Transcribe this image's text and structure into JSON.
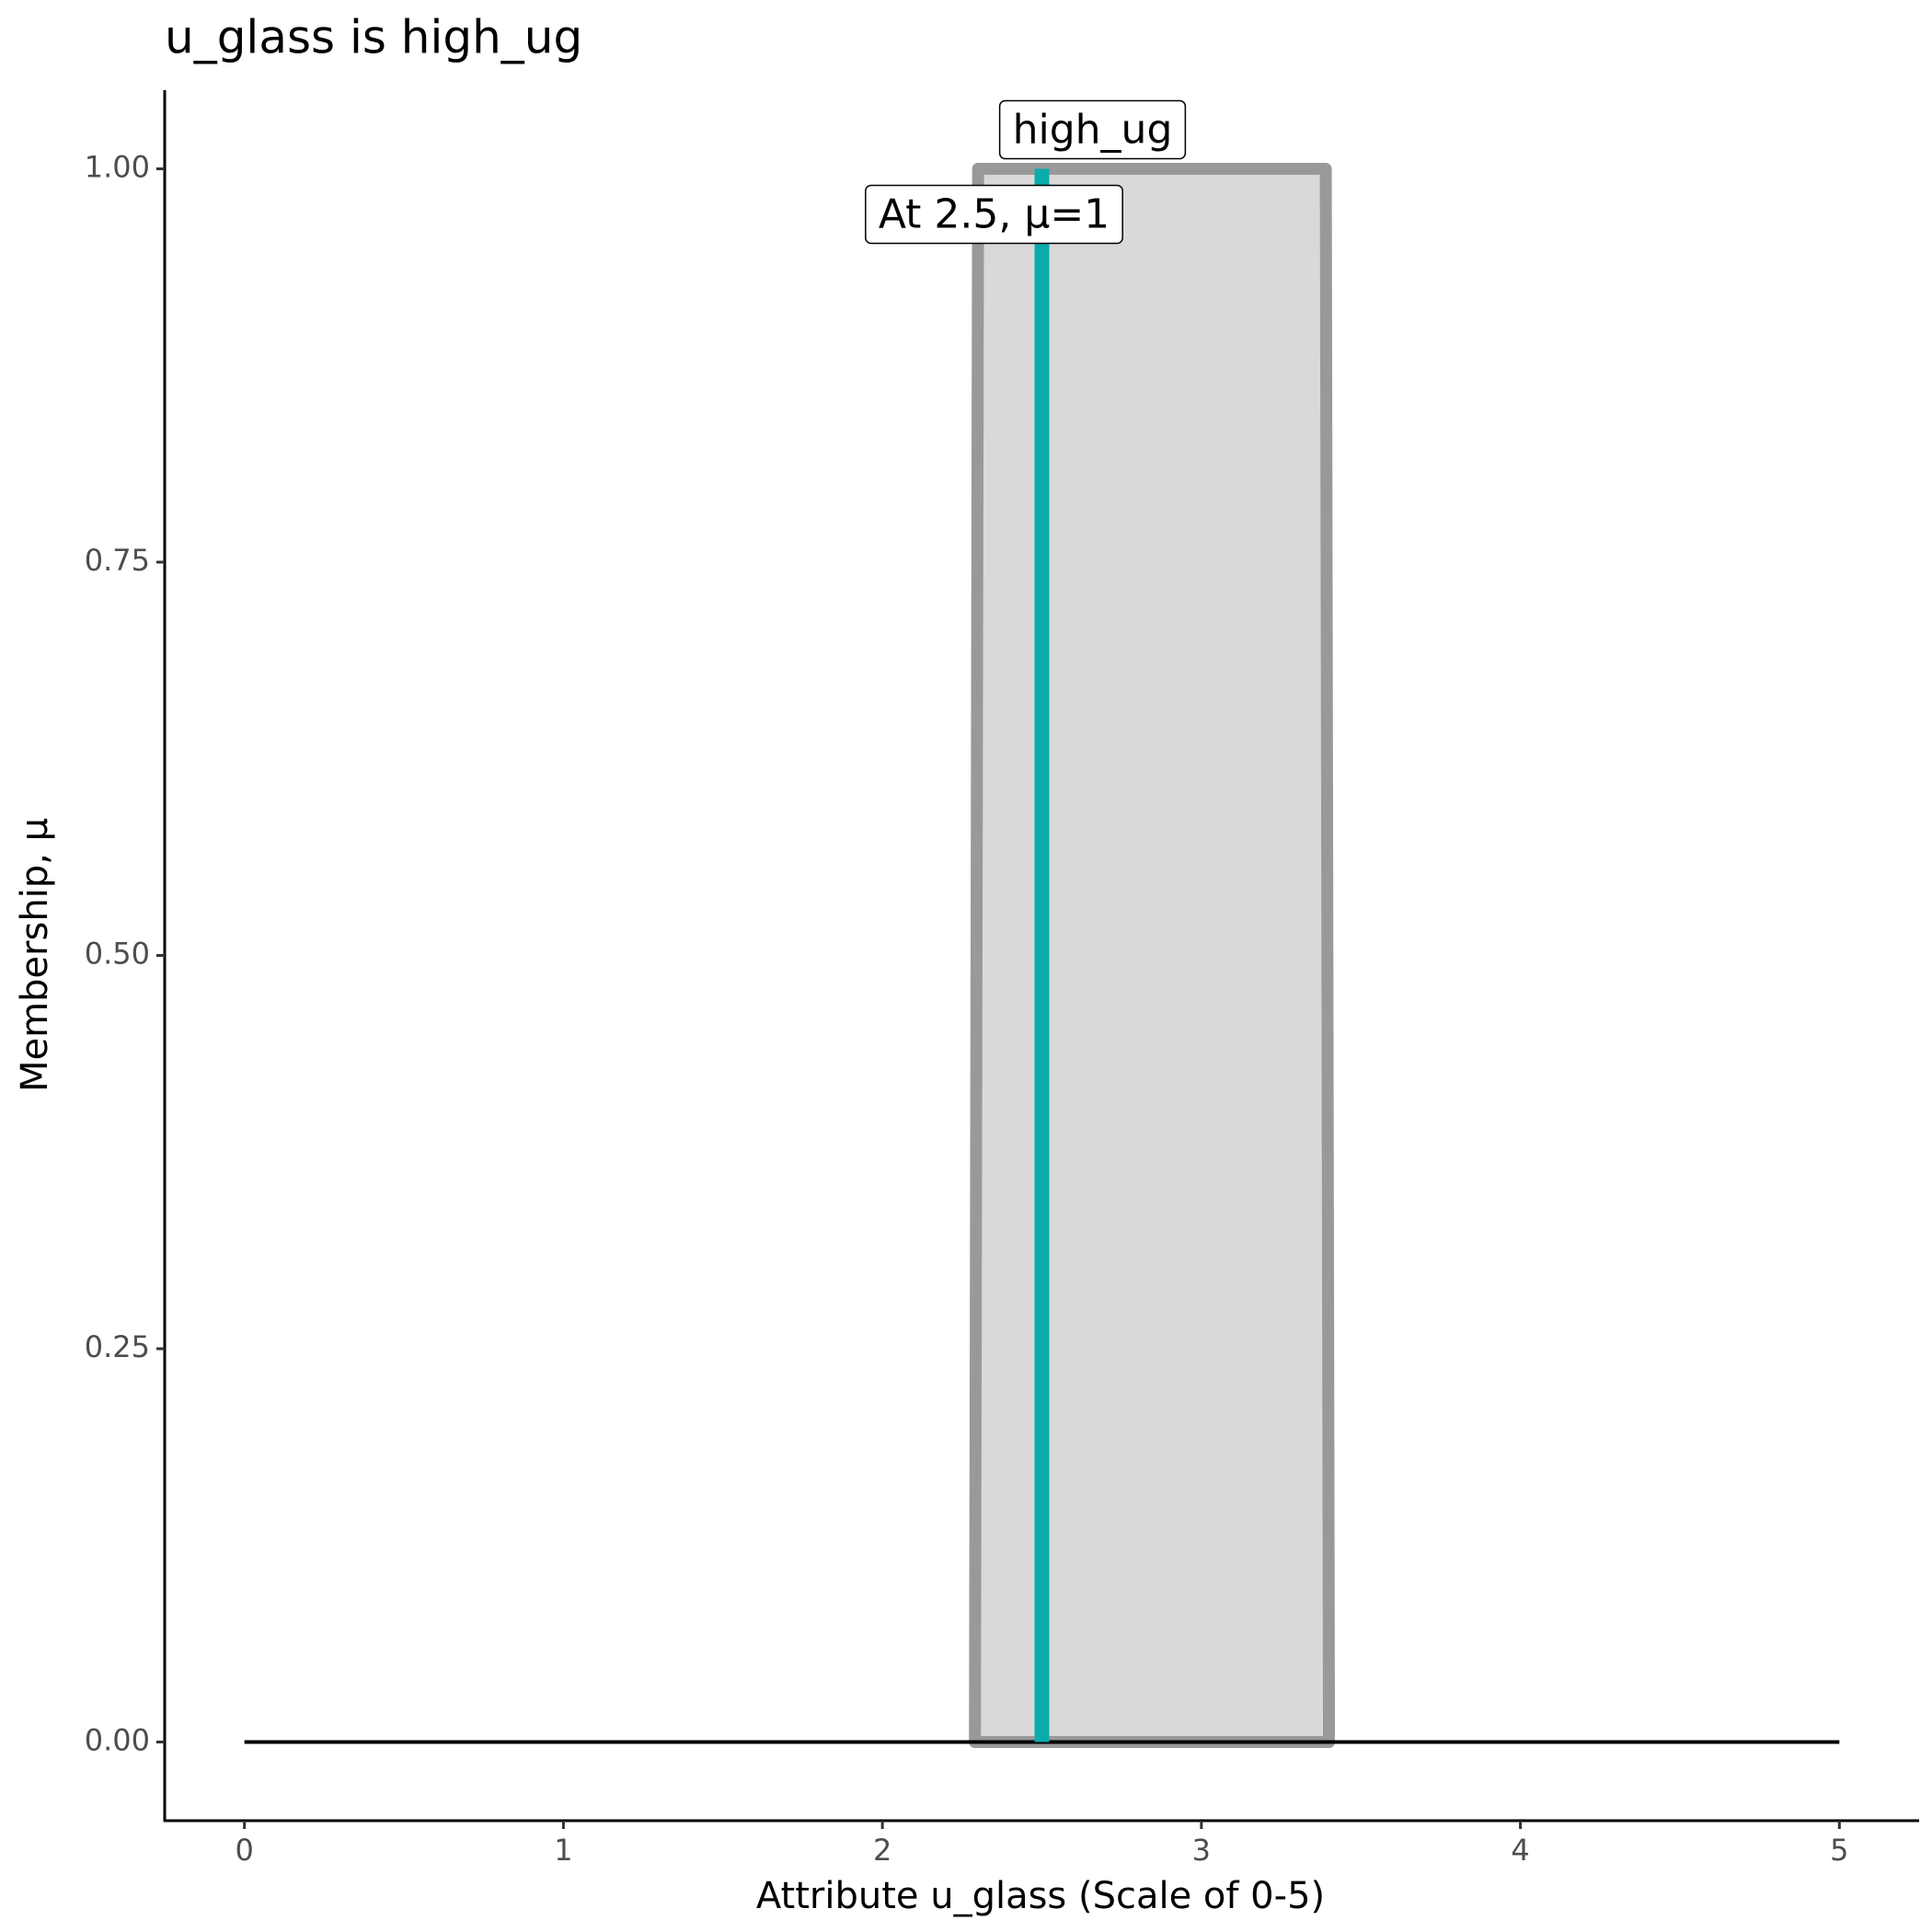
{
  "chart_data": {
    "type": "membership",
    "title": "u_glass is high_ug",
    "x_label": "Attribute u_glass (Scale of 0-5)",
    "y_label": "Membership, μ",
    "xlim": [
      -0.25,
      5.25
    ],
    "ylim": [
      -0.05,
      1.05
    ],
    "xticks": [
      0,
      1,
      2,
      3,
      4,
      5
    ],
    "yticks": [
      {
        "value": 0,
        "label": "0.00"
      },
      {
        "value": 0.25,
        "label": "0.25"
      },
      {
        "value": 0.5,
        "label": "0.50"
      },
      {
        "value": 0.75,
        "label": "0.75"
      },
      {
        "value": 1,
        "label": "1.00"
      }
    ],
    "series": [
      {
        "name": "high_ug",
        "color": "#999999",
        "fill": "#d9d9d9",
        "x": [
          2.29,
          2.3,
          3.39,
          3.4
        ],
        "values": [
          0,
          1,
          1,
          0
        ]
      }
    ],
    "baseline": {
      "x": [
        0,
        5
      ],
      "values": [
        0,
        0
      ],
      "color": "#000000"
    },
    "marker": {
      "x": 2.5,
      "value": 1,
      "label": "At 2.5, μ=1",
      "color": "#0aabab"
    }
  }
}
